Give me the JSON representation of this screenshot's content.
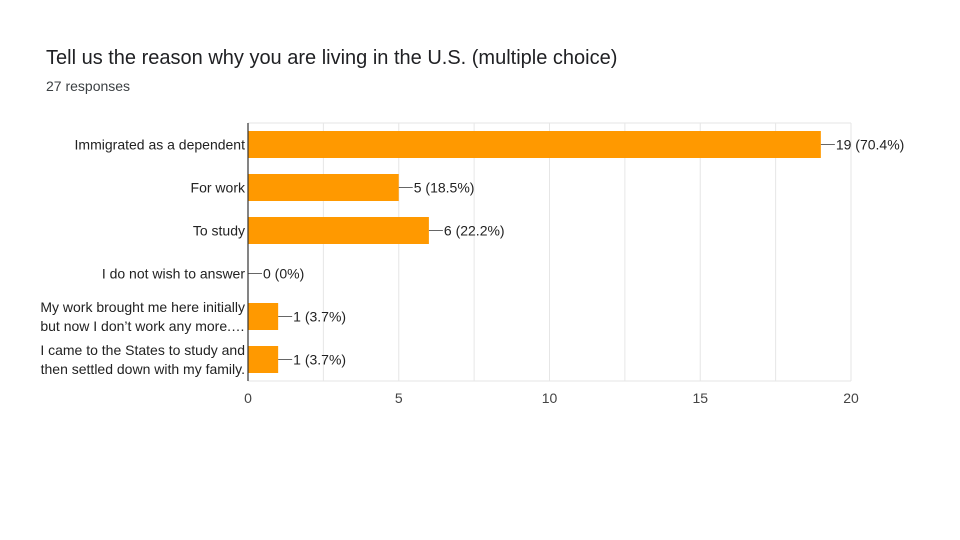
{
  "header": {
    "title": "Tell us the reason why you are living in the U.S. (multiple choice)",
    "responses": "27 responses"
  },
  "colors": {
    "bar": "#ff9900",
    "grid": "#e6e6e6",
    "axis": "#333333",
    "leader": "#666666"
  },
  "chart_data": {
    "type": "bar",
    "orientation": "horizontal",
    "title": "Tell us the reason why you are living in the U.S. (multiple choice)",
    "categories": [
      [
        "Immigrated as a dependent"
      ],
      [
        "For work"
      ],
      [
        "To study"
      ],
      [
        "I do not wish to answer"
      ],
      [
        "My work brought me here initially",
        "but now I don’t work any more.…"
      ],
      [
        "I came to the States to study and",
        "then settled down with my family."
      ]
    ],
    "values": [
      19,
      5,
      6,
      0,
      1,
      1
    ],
    "value_labels": [
      "19 (70.4%)",
      "5 (18.5%)",
      "6 (22.2%)",
      "0 (0%)",
      "1 (3.7%)",
      "1 (3.7%)"
    ],
    "xlim": [
      0,
      20
    ],
    "xticks": [
      0,
      5,
      10,
      15,
      20
    ],
    "grid": true,
    "legend": "none"
  }
}
